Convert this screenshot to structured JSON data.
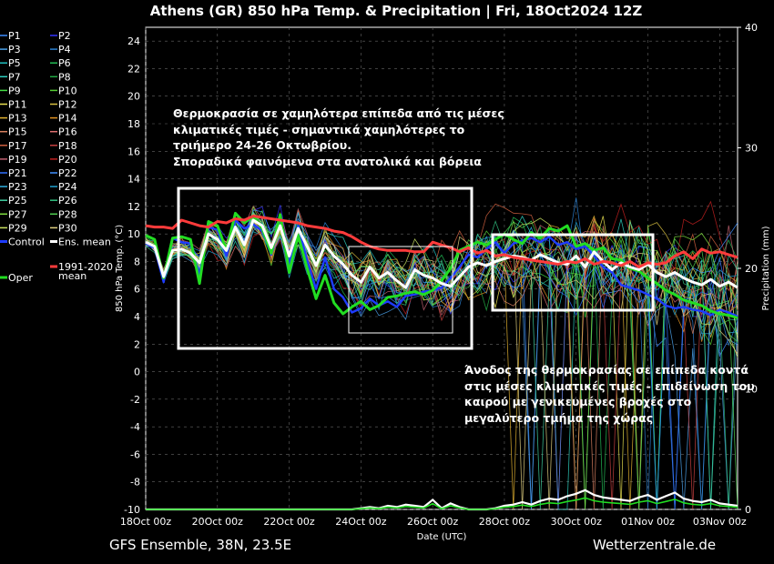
{
  "title": "Athens  (GR)  850 hPa Temp. & Precipitation | Fri, 18Oct2024 12Z",
  "footer_left": "GFS Ensemble, 38N, 23.5E",
  "footer_right": "Wetterzentrale.de",
  "annotations": {
    "top": "Θερμοκρασία σε χαμηλότερα επίπεδα από τις μέσες\nκλιματικές τιμές - σημαντικά χαμηλότερες το\nτριήμερο 24-26 Οκτωβρίου.\nΣποραδικά φαινόμενα στα ανατολικά και βόρεια",
    "bottom": "Άνοδος της θερμοκρασίας σε επίπεδα κοντά\nστις μέσες κλιματικές τιμές - επιδείνωση του\nκαιρού με γενικευμένες βροχές στο\nμεγαλύτερο τμήμα της χώρας"
  },
  "colors": {
    "background": "#000000",
    "control": "#1e3cff",
    "ens_mean": "#ffffff",
    "climate_mean": "#ff3b3b",
    "oper": "#22dd22"
  },
  "chart_data": {
    "type": "line",
    "xlabel": "Date (UTC)",
    "ylabel": "850 hPa Temp. (°C)",
    "y2label": "Precipitation (mm)",
    "xlim": [
      "2024-10-18 00z",
      "2024-11-03 12z"
    ],
    "x_ticks": [
      "18Oct 00z",
      "20Oct 00z",
      "22Oct 00z",
      "24Oct 00z",
      "26Oct 00z",
      "28Oct 00z",
      "30Oct 00z",
      "01Nov 00z",
      "03Nov 00z"
    ],
    "ylim": [
      -10,
      25
    ],
    "y_ticks": [
      24,
      22,
      20,
      18,
      16,
      14,
      12,
      10,
      8,
      6,
      4,
      2,
      0,
      -2,
      -4,
      -6,
      -8,
      -10
    ],
    "y2lim": [
      0,
      40
    ],
    "y2_ticks": [
      40,
      30,
      20,
      10,
      0
    ],
    "grid": true,
    "legend_position": "left outside",
    "legend": [
      {
        "label": "P1",
        "color": "#3c8cff"
      },
      {
        "label": "P2",
        "color": "#3333ff"
      },
      {
        "label": "P3",
        "color": "#4aa0e8"
      },
      {
        "label": "P4",
        "color": "#2a7fd0"
      },
      {
        "label": "P5",
        "color": "#1fbfbf"
      },
      {
        "label": "P6",
        "color": "#22bb55"
      },
      {
        "label": "P7",
        "color": "#2ed0c0"
      },
      {
        "label": "P8",
        "color": "#22aa44"
      },
      {
        "label": "P9",
        "color": "#44dd44"
      },
      {
        "label": "P10",
        "color": "#55cc33"
      },
      {
        "label": "P11",
        "color": "#e8e050"
      },
      {
        "label": "P12",
        "color": "#d8c040"
      },
      {
        "label": "P13",
        "color": "#e0b030"
      },
      {
        "label": "P14",
        "color": "#e09020"
      },
      {
        "label": "P15",
        "color": "#d88060"
      },
      {
        "label": "P16",
        "color": "#e07070"
      },
      {
        "label": "P17",
        "color": "#d06040"
      },
      {
        "label": "P18",
        "color": "#c84040"
      },
      {
        "label": "P19",
        "color": "#c06070"
      },
      {
        "label": "P20",
        "color": "#c02020"
      },
      {
        "label": "P21",
        "color": "#3070ff"
      },
      {
        "label": "P22",
        "color": "#4090ff"
      },
      {
        "label": "P23",
        "color": "#30b0e0"
      },
      {
        "label": "P24",
        "color": "#20a0d0"
      },
      {
        "label": "P25",
        "color": "#40d0a0"
      },
      {
        "label": "P26",
        "color": "#30c080"
      },
      {
        "label": "P27",
        "color": "#80e040"
      },
      {
        "label": "P28",
        "color": "#50d050"
      },
      {
        "label": "P29",
        "color": "#c8e060"
      },
      {
        "label": "P30",
        "color": "#e0d080"
      },
      {
        "label": "Control",
        "color": "#1e3cff"
      },
      {
        "label": "Ens. mean",
        "color": "#ffffff"
      },
      {
        "label": "1991-2020\nmean",
        "color": "#ff3b3b"
      },
      {
        "label": "Oper",
        "color": "#22dd22"
      }
    ],
    "n_points": 67,
    "series": [
      {
        "name": "Ens. mean",
        "values": [
          9.4,
          9.1,
          6.9,
          8.8,
          8.9,
          8.6,
          7.9,
          10.0,
          9.6,
          8.8,
          10.5,
          9.2,
          11.0,
          10.6,
          9.0,
          10.6,
          8.4,
          10.4,
          9.1,
          7.7,
          9.2,
          8.4,
          7.8,
          7.0,
          6.5,
          7.6,
          6.8,
          7.2,
          6.6,
          6.1,
          7.4,
          7.0,
          6.8,
          6.4,
          6.2,
          6.9,
          7.6,
          7.9,
          7.7,
          8.0,
          8.2,
          8.4,
          8.3,
          8.1,
          8.5,
          8.2,
          7.9,
          7.8,
          8.4,
          7.6,
          8.7,
          8.0,
          7.4,
          7.9,
          7.6,
          7.4,
          7.8,
          7.2,
          6.9,
          7.2,
          6.8,
          6.5,
          6.3,
          6.7,
          6.2,
          6.5,
          6.1
        ]
      },
      {
        "name": "Control",
        "values": [
          9.3,
          9.0,
          6.5,
          9.7,
          9.4,
          9.3,
          7.0,
          10.5,
          10.3,
          8.4,
          11.0,
          10.4,
          10.7,
          10.2,
          8.5,
          11.2,
          7.8,
          10.6,
          8.1,
          6.0,
          8.3,
          6.0,
          5.4,
          4.3,
          4.6,
          5.3,
          4.8,
          5.1,
          4.7,
          5.5,
          5.6,
          5.8,
          5.9,
          6.1,
          6.8,
          7.6,
          8.5,
          8.3,
          8.9,
          9.4,
          8.6,
          9.3,
          9.5,
          9.7,
          9.4,
          9.8,
          9.2,
          9.4,
          8.9,
          9.1,
          8.4,
          7.6,
          7.2,
          6.3,
          6.1,
          5.9,
          5.6,
          5.3,
          4.8,
          4.6,
          4.7,
          4.5,
          4.4,
          4.1,
          4.5,
          4.3,
          4.0
        ]
      },
      {
        "name": "Oper",
        "values": [
          9.9,
          9.6,
          6.8,
          9.7,
          9.8,
          9.6,
          6.4,
          10.9,
          10.6,
          8.8,
          11.5,
          10.8,
          11.3,
          10.4,
          8.6,
          11.4,
          7.2,
          9.9,
          7.5,
          5.3,
          7.0,
          5.0,
          4.2,
          4.7,
          5.1,
          4.5,
          4.8,
          5.4,
          5.5,
          5.7,
          5.8,
          5.6,
          5.9,
          6.6,
          7.5,
          8.8,
          9.1,
          9.4,
          9.2,
          9.6,
          10.0,
          9.6,
          9.3,
          10.1,
          9.7,
          10.4,
          10.2,
          10.6,
          9.1,
          9.3,
          8.8,
          9.0,
          8.2,
          8.1,
          7.5,
          7.3,
          6.8,
          6.4,
          5.9,
          5.6,
          5.2,
          5.0,
          4.8,
          4.4,
          4.2,
          4.1,
          3.9
        ]
      },
      {
        "name": "1991-2020\nmean",
        "values": [
          10.6,
          10.5,
          10.5,
          10.4,
          11.0,
          10.8,
          10.6,
          10.5,
          10.9,
          10.8,
          11.1,
          11.0,
          11.3,
          11.2,
          11.1,
          11.0,
          10.9,
          10.8,
          10.6,
          10.5,
          10.4,
          10.2,
          10.1,
          9.8,
          9.4,
          9.1,
          8.9,
          8.8,
          8.8,
          8.8,
          8.7,
          8.7,
          9.4,
          9.2,
          9.0,
          8.7,
          9.0,
          8.6,
          8.8,
          8.4,
          8.5,
          8.3,
          8.2,
          8.1,
          8.0,
          7.9,
          7.8,
          8.0,
          7.9,
          8.2,
          7.8,
          8.0,
          7.9,
          7.7,
          8.0,
          7.6,
          7.9,
          7.8,
          7.9,
          8.4,
          8.7,
          8.2,
          8.9,
          8.6,
          8.7,
          8.5,
          8.3
        ]
      },
      {
        "name": "Precipitation ens. mean",
        "values": [
          0,
          0,
          0,
          0,
          0,
          0,
          0,
          0,
          0,
          0,
          0,
          0,
          0,
          0,
          0,
          0,
          0,
          0,
          0,
          0,
          0,
          0,
          0,
          0,
          0.1,
          0.2,
          0.1,
          0.3,
          0.2,
          0.4,
          0.3,
          0.2,
          0.8,
          0.1,
          0.5,
          0.2,
          0,
          0,
          0,
          0.1,
          0.3,
          0.4,
          0.6,
          0.4,
          0.7,
          0.9,
          0.8,
          1.1,
          1.3,
          1.6,
          1.2,
          1.0,
          0.9,
          0.8,
          0.7,
          1.0,
          1.2,
          0.8,
          1.1,
          1.4,
          0.9,
          0.7,
          0.6,
          0.8,
          0.5,
          0.4,
          0.3
        ]
      }
    ]
  }
}
